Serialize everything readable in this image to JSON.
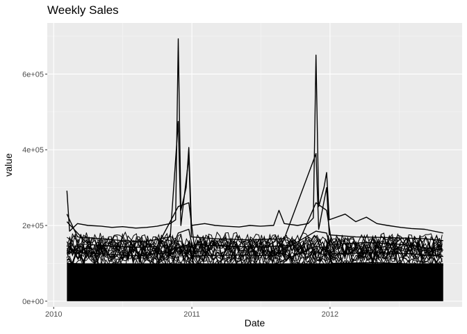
{
  "chart_data": {
    "type": "line",
    "title": "Weekly Sales",
    "xlabel": "Date",
    "ylabel": "value",
    "x_range": [
      "2009-12-15",
      "2012-12-15"
    ],
    "ylim": [
      -15000,
      735000
    ],
    "x_ticks": [
      {
        "label": "2010",
        "value": "2010-01-01"
      },
      {
        "label": "2011",
        "value": "2011-01-01"
      },
      {
        "label": "2012",
        "value": "2012-01-01"
      }
    ],
    "y_ticks": [
      {
        "label": "0e+00",
        "value": 0
      },
      {
        "label": "2e+05",
        "value": 200000
      },
      {
        "label": "4e+05",
        "value": 400000
      },
      {
        "label": "6e+05",
        "value": 600000
      }
    ],
    "grid": true,
    "background": "#ebebeb",
    "line_color": "#000000",
    "series": [
      {
        "values": [
          {
            "x": "2010-02-05",
            "y": 292000
          },
          {
            "x": "2010-02-12",
            "y": 185000
          },
          {
            "x": "2010-03-05",
            "y": 205000
          },
          {
            "x": "2010-04-02",
            "y": 200000
          },
          {
            "x": "2010-05-07",
            "y": 198000
          },
          {
            "x": "2010-06-04",
            "y": 195000
          },
          {
            "x": "2010-07-02",
            "y": 197000
          },
          {
            "x": "2010-08-06",
            "y": 193000
          },
          {
            "x": "2010-09-03",
            "y": 195000
          },
          {
            "x": "2010-10-01",
            "y": 198000
          },
          {
            "x": "2010-11-05",
            "y": 205000
          },
          {
            "x": "2010-11-19",
            "y": 215000
          },
          {
            "x": "2010-11-26",
            "y": 693000
          },
          {
            "x": "2010-12-03",
            "y": 240000
          },
          {
            "x": "2010-12-17",
            "y": 300000
          },
          {
            "x": "2010-12-24",
            "y": 406000
          },
          {
            "x": "2010-12-31",
            "y": 200000
          },
          {
            "x": "2011-02-04",
            "y": 205000
          },
          {
            "x": "2011-03-04",
            "y": 200000
          },
          {
            "x": "2011-04-01",
            "y": 198000
          },
          {
            "x": "2011-05-06",
            "y": 196000
          },
          {
            "x": "2011-06-03",
            "y": 200000
          },
          {
            "x": "2011-07-01",
            "y": 198000
          },
          {
            "x": "2011-08-05",
            "y": 200000
          },
          {
            "x": "2011-08-19",
            "y": 240000
          },
          {
            "x": "2011-09-02",
            "y": 205000
          },
          {
            "x": "2011-10-07",
            "y": 200000
          },
          {
            "x": "2011-11-04",
            "y": 205000
          },
          {
            "x": "2011-11-18",
            "y": 220000
          },
          {
            "x": "2011-11-25",
            "y": 650000
          },
          {
            "x": "2011-12-02",
            "y": 250000
          },
          {
            "x": "2011-12-16",
            "y": 300000
          },
          {
            "x": "2011-12-23",
            "y": 340000
          },
          {
            "x": "2011-12-30",
            "y": 215000
          },
          {
            "x": "2012-02-10",
            "y": 230000
          },
          {
            "x": "2012-03-09",
            "y": 210000
          },
          {
            "x": "2012-04-06",
            "y": 222000
          },
          {
            "x": "2012-05-04",
            "y": 205000
          },
          {
            "x": "2012-06-01",
            "y": 200000
          },
          {
            "x": "2012-07-06",
            "y": 195000
          },
          {
            "x": "2012-08-03",
            "y": 192000
          },
          {
            "x": "2012-09-07",
            "y": 190000
          },
          {
            "x": "2012-10-26",
            "y": 180000
          }
        ]
      },
      {
        "values": [
          {
            "x": "2010-02-05",
            "y": 230000
          },
          {
            "x": "2010-03-05",
            "y": 170000
          },
          {
            "x": "2010-05-07",
            "y": 165000
          },
          {
            "x": "2010-07-02",
            "y": 160000
          },
          {
            "x": "2010-09-03",
            "y": 158000
          },
          {
            "x": "2010-11-05",
            "y": 170000
          },
          {
            "x": "2010-11-26",
            "y": 475000
          },
          {
            "x": "2010-12-03",
            "y": 200000
          },
          {
            "x": "2010-12-24",
            "y": 380000
          },
          {
            "x": "2010-12-31",
            "y": 170000
          },
          {
            "x": "2011-03-04",
            "y": 165000
          },
          {
            "x": "2011-06-03",
            "y": 162000
          },
          {
            "x": "2011-09-02",
            "y": 165000
          },
          {
            "x": "2011-11-25",
            "y": 390000
          },
          {
            "x": "2011-12-02",
            "y": 190000
          },
          {
            "x": "2011-12-23",
            "y": 300000
          },
          {
            "x": "2011-12-30",
            "y": 175000
          },
          {
            "x": "2012-03-09",
            "y": 170000
          },
          {
            "x": "2012-06-01",
            "y": 168000
          },
          {
            "x": "2012-09-07",
            "y": 165000
          },
          {
            "x": "2012-10-26",
            "y": 160000
          }
        ]
      },
      {
        "values": [
          {
            "x": "2010-02-05",
            "y": 210000
          },
          {
            "x": "2010-04-02",
            "y": 150000
          },
          {
            "x": "2010-06-04",
            "y": 145000
          },
          {
            "x": "2010-08-06",
            "y": 142000
          },
          {
            "x": "2010-10-01",
            "y": 145000
          },
          {
            "x": "2010-11-26",
            "y": 250000
          },
          {
            "x": "2010-12-24",
            "y": 260000
          },
          {
            "x": "2011-01-07",
            "y": 150000
          },
          {
            "x": "2011-04-01",
            "y": 145000
          },
          {
            "x": "2011-07-01",
            "y": 143000
          },
          {
            "x": "2011-10-07",
            "y": 148000
          },
          {
            "x": "2011-11-25",
            "y": 260000
          },
          {
            "x": "2011-12-23",
            "y": 240000
          },
          {
            "x": "2012-01-06",
            "y": 150000
          },
          {
            "x": "2012-04-06",
            "y": 155000
          },
          {
            "x": "2012-07-06",
            "y": 150000
          },
          {
            "x": "2012-10-26",
            "y": 135000
          }
        ]
      },
      {
        "values": [
          {
            "x": "2010-02-05",
            "y": 130000
          },
          {
            "x": "2010-05-07",
            "y": 125000
          },
          {
            "x": "2010-08-06",
            "y": 120000
          },
          {
            "x": "2010-11-05",
            "y": 128000
          },
          {
            "x": "2010-11-26",
            "y": 180000
          },
          {
            "x": "2010-12-24",
            "y": 190000
          },
          {
            "x": "2011-01-07",
            "y": 120000
          },
          {
            "x": "2011-05-06",
            "y": 122000
          },
          {
            "x": "2011-08-05",
            "y": 120000
          },
          {
            "x": "2011-11-25",
            "y": 185000
          },
          {
            "x": "2011-12-23",
            "y": 180000
          },
          {
            "x": "2012-01-06",
            "y": 125000
          },
          {
            "x": "2012-05-04",
            "y": 128000
          },
          {
            "x": "2012-08-03",
            "y": 125000
          },
          {
            "x": "2012-10-26",
            "y": 118000
          }
        ]
      },
      {
        "values": [
          {
            "x": "2010-02-05",
            "y": 100000
          },
          {
            "x": "2010-04-02",
            "y": 98000
          },
          {
            "x": "2010-07-02",
            "y": 95000
          },
          {
            "x": "2010-10-01",
            "y": 97000
          },
          {
            "x": "2010-11-26",
            "y": 140000
          },
          {
            "x": "2010-12-24",
            "y": 150000
          },
          {
            "x": "2011-01-07",
            "y": 96000
          },
          {
            "x": "2011-04-01",
            "y": 98000
          },
          {
            "x": "2011-08-05",
            "y": 97000
          },
          {
            "x": "2011-11-25",
            "y": 145000
          },
          {
            "x": "2011-12-23",
            "y": 140000
          },
          {
            "x": "2012-01-06",
            "y": 100000
          },
          {
            "x": "2012-05-04",
            "y": 102000
          },
          {
            "x": "2012-10-26",
            "y": 95000
          }
        ]
      }
    ]
  }
}
